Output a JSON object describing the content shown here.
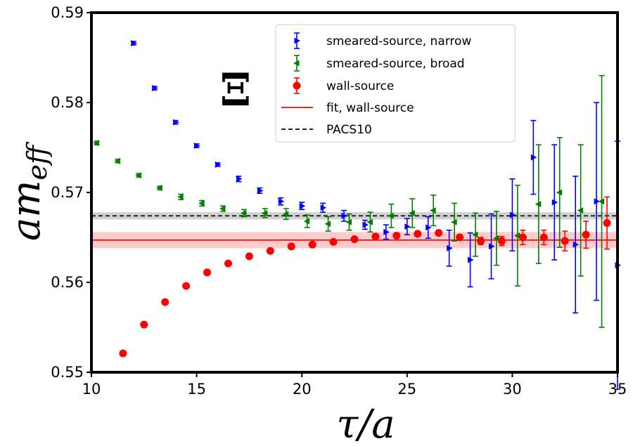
{
  "chart_data": {
    "type": "scatter",
    "title": "",
    "annotation": "Ξ",
    "xlabel": "τ/a",
    "ylabel_main": "am",
    "ylabel_sub": "eff",
    "xlim": [
      10,
      35
    ],
    "ylim": [
      0.55,
      0.59
    ],
    "xticks": [
      10,
      15,
      20,
      25,
      30,
      35
    ],
    "yticks": [
      0.55,
      0.56,
      0.57,
      0.58,
      0.59
    ],
    "ytick_labels": [
      "0.55",
      "0.56",
      "0.57",
      "0.58",
      "0.59"
    ],
    "legend_position": "top-right",
    "series": [
      {
        "name": "smeared-source, narrow",
        "kind": "errorbar",
        "marker": "triangle-right",
        "color": "#0000ff",
        "points": [
          {
            "x": 12,
            "y": 0.5866,
            "err": 0.0002
          },
          {
            "x": 13,
            "y": 0.5816,
            "err": 0.0002
          },
          {
            "x": 14,
            "y": 0.5778,
            "err": 0.0002
          },
          {
            "x": 15,
            "y": 0.5752,
            "err": 0.0002
          },
          {
            "x": 16,
            "y": 0.5731,
            "err": 0.0002
          },
          {
            "x": 17,
            "y": 0.5715,
            "err": 0.0003
          },
          {
            "x": 18,
            "y": 0.5702,
            "err": 0.0003
          },
          {
            "x": 19,
            "y": 0.569,
            "err": 0.0004
          },
          {
            "x": 20,
            "y": 0.5685,
            "err": 0.0004
          },
          {
            "x": 21,
            "y": 0.5683,
            "err": 0.0005
          },
          {
            "x": 22,
            "y": 0.5674,
            "err": 0.0006
          },
          {
            "x": 23,
            "y": 0.5664,
            "err": 0.0005
          },
          {
            "x": 24,
            "y": 0.5656,
            "err": 0.0008
          },
          {
            "x": 25,
            "y": 0.5662,
            "err": 0.0009
          },
          {
            "x": 26,
            "y": 0.5661,
            "err": 0.0012
          },
          {
            "x": 27,
            "y": 0.5638,
            "err": 0.002
          },
          {
            "x": 28,
            "y": 0.5625,
            "err": 0.003
          },
          {
            "x": 29,
            "y": 0.564,
            "err": 0.0036
          },
          {
            "x": 30,
            "y": 0.5675,
            "err": 0.004
          },
          {
            "x": 31,
            "y": 0.5739,
            "err": 0.0041
          },
          {
            "x": 32,
            "y": 0.5689,
            "err": 0.0064
          },
          {
            "x": 33,
            "y": 0.5642,
            "err": 0.0076
          },
          {
            "x": 34,
            "y": 0.569,
            "err": 0.011
          },
          {
            "x": 35,
            "y": 0.5619,
            "err": 0.0138
          }
        ]
      },
      {
        "name": "smeared-source, broad",
        "kind": "errorbar",
        "marker": "triangle-left",
        "color": "#008000",
        "points": [
          {
            "x": 10.25,
            "y": 0.5755,
            "err": 0.0002
          },
          {
            "x": 11.25,
            "y": 0.5735,
            "err": 0.0002
          },
          {
            "x": 12.25,
            "y": 0.5719,
            "err": 0.0002
          },
          {
            "x": 13.25,
            "y": 0.5705,
            "err": 0.0002
          },
          {
            "x": 14.25,
            "y": 0.5695,
            "err": 0.0003
          },
          {
            "x": 15.25,
            "y": 0.5688,
            "err": 0.0003
          },
          {
            "x": 16.25,
            "y": 0.5682,
            "err": 0.0003
          },
          {
            "x": 17.25,
            "y": 0.5677,
            "err": 0.0004
          },
          {
            "x": 18.25,
            "y": 0.5677,
            "err": 0.0005
          },
          {
            "x": 19.25,
            "y": 0.5676,
            "err": 0.0006
          },
          {
            "x": 20.25,
            "y": 0.5668,
            "err": 0.0007
          },
          {
            "x": 21.25,
            "y": 0.5665,
            "err": 0.0008
          },
          {
            "x": 22.25,
            "y": 0.5667,
            "err": 0.0009
          },
          {
            "x": 23.25,
            "y": 0.5667,
            "err": 0.0011
          },
          {
            "x": 24.25,
            "y": 0.5674,
            "err": 0.0013
          },
          {
            "x": 25.25,
            "y": 0.5677,
            "err": 0.0016
          },
          {
            "x": 26.25,
            "y": 0.568,
            "err": 0.0017
          },
          {
            "x": 27.25,
            "y": 0.5667,
            "err": 0.0021
          },
          {
            "x": 28.25,
            "y": 0.5653,
            "err": 0.0024
          },
          {
            "x": 29.25,
            "y": 0.5649,
            "err": 0.003
          },
          {
            "x": 30.25,
            "y": 0.5652,
            "err": 0.0056
          },
          {
            "x": 31.25,
            "y": 0.5687,
            "err": 0.0066
          },
          {
            "x": 32.25,
            "y": 0.57,
            "err": 0.0061
          },
          {
            "x": 33.25,
            "y": 0.568,
            "err": 0.0073
          },
          {
            "x": 34.25,
            "y": 0.569,
            "err": 0.014
          }
        ]
      },
      {
        "name": "wall-source",
        "kind": "errorbar",
        "marker": "circle",
        "color": "#ff0000",
        "points": [
          {
            "x": 11.5,
            "y": 0.5521,
            "err": 0.0001
          },
          {
            "x": 12.5,
            "y": 0.5553,
            "err": 0.0001
          },
          {
            "x": 13.5,
            "y": 0.5578,
            "err": 0.0001
          },
          {
            "x": 14.5,
            "y": 0.5596,
            "err": 0.0001
          },
          {
            "x": 15.5,
            "y": 0.5611,
            "err": 0.0001
          },
          {
            "x": 16.5,
            "y": 0.5621,
            "err": 0.0001
          },
          {
            "x": 17.5,
            "y": 0.5629,
            "err": 0.0001
          },
          {
            "x": 18.5,
            "y": 0.5635,
            "err": 0.0001
          },
          {
            "x": 19.5,
            "y": 0.564,
            "err": 0.0001
          },
          {
            "x": 20.5,
            "y": 0.5642,
            "err": 0.0001
          },
          {
            "x": 21.5,
            "y": 0.5645,
            "err": 0.0001
          },
          {
            "x": 22.5,
            "y": 0.5648,
            "err": 0.0001
          },
          {
            "x": 23.5,
            "y": 0.5651,
            "err": 0.0002
          },
          {
            "x": 24.5,
            "y": 0.5652,
            "err": 0.0002
          },
          {
            "x": 25.5,
            "y": 0.5654,
            "err": 0.0002
          },
          {
            "x": 26.5,
            "y": 0.5655,
            "err": 0.0002
          },
          {
            "x": 27.5,
            "y": 0.565,
            "err": 0.0003
          },
          {
            "x": 28.5,
            "y": 0.5646,
            "err": 0.0004
          },
          {
            "x": 29.5,
            "y": 0.5646,
            "err": 0.0005
          },
          {
            "x": 30.5,
            "y": 0.565,
            "err": 0.0008
          },
          {
            "x": 31.5,
            "y": 0.565,
            "err": 0.0008
          },
          {
            "x": 32.5,
            "y": 0.5646,
            "err": 0.0011
          },
          {
            "x": 33.5,
            "y": 0.5653,
            "err": 0.0015
          },
          {
            "x": 34.5,
            "y": 0.5666,
            "err": 0.0029
          }
        ]
      }
    ],
    "fit": {
      "name": "fit, wall-source",
      "color": "#ff0000",
      "value": 0.5647,
      "band": [
        0.5638,
        0.5656
      ]
    },
    "reference": {
      "name": "PACS10",
      "color": "#000000",
      "value": 0.5674,
      "band": [
        0.567,
        0.5678
      ]
    }
  }
}
